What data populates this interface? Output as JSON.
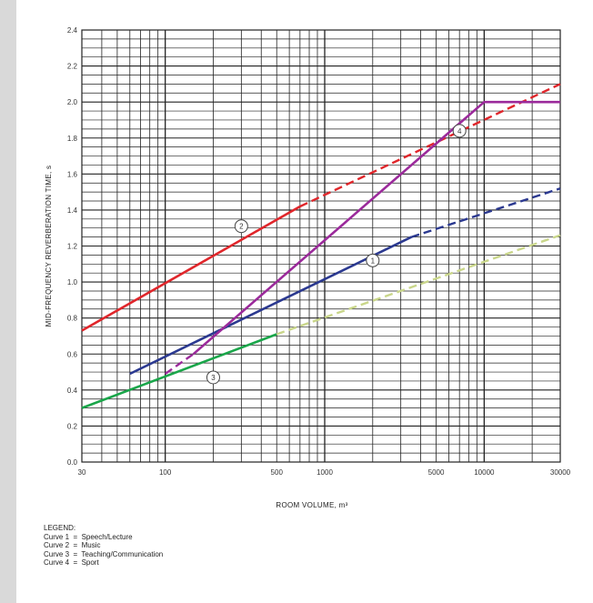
{
  "chart_data": {
    "type": "line",
    "x_scale": "log",
    "xlim": [
      30,
      30000
    ],
    "ylim": [
      0.0,
      2.4
    ],
    "grid": true,
    "x_ticks": [
      30,
      100,
      500,
      1000,
      5000,
      10000,
      30000
    ],
    "x_tick_labels": [
      "30",
      "100",
      "500",
      "1000",
      "5000",
      "10000",
      "30000"
    ],
    "y_ticks": [
      0.0,
      0.2,
      0.4,
      0.6,
      0.8,
      1.0,
      1.2,
      1.4,
      1.6,
      1.8,
      2.0,
      2.2,
      2.4
    ],
    "y_tick_labels": [
      "0.0",
      "0.2",
      "0.4",
      "0.6",
      "0.8",
      "1.0",
      "1.2",
      "1.4",
      "1.6",
      "1.8",
      "2.0",
      "2.2",
      "2.4"
    ],
    "xlabel": "ROOM VOLUME, m³",
    "ylabel": "MID-FREQUENCY REVERBERATION TIME, s",
    "series": [
      {
        "name": "Speech/Lecture",
        "number": "1",
        "color": "#2b3990",
        "solid": [
          [
            60,
            0.49
          ],
          [
            3500,
            1.25
          ]
        ],
        "dashed": [
          [
            3500,
            1.25
          ],
          [
            30000,
            1.52
          ]
        ],
        "marker_at": [
          2000,
          1.12
        ]
      },
      {
        "name": "Music",
        "number": "2",
        "color": "#e0262b",
        "solid": [
          [
            30,
            0.73
          ],
          [
            700,
            1.42
          ]
        ],
        "dashed": [
          [
            700,
            1.42
          ],
          [
            30000,
            2.1
          ]
        ],
        "marker_at": [
          300,
          1.31
        ]
      },
      {
        "name": "Teaching/Communication",
        "number": "3",
        "color": "#1aa64a",
        "solid": [
          [
            30,
            0.3
          ],
          [
            500,
            0.71
          ]
        ],
        "dashed": [
          [
            500,
            0.71
          ],
          [
            30000,
            1.26
          ]
        ],
        "dashed_color": "#c9d68a",
        "marker_at": [
          200,
          0.47
        ]
      },
      {
        "name": "Sport",
        "number": "4",
        "color": "#9b2a9b",
        "dashed": [
          [
            100,
            0.49
          ],
          [
            150,
            0.6
          ]
        ],
        "solid": [
          [
            150,
            0.6
          ],
          [
            10000,
            2.0
          ],
          [
            30000,
            2.0
          ]
        ],
        "marker_at": [
          7000,
          1.84
        ]
      }
    ]
  },
  "legend": {
    "title": "LEGEND:",
    "entries": [
      "Curve 1  =  Speech/Lecture",
      "Curve 2  =  Music",
      "Curve 3  =  Teaching/Communication",
      "Curve 4  =  Sport"
    ]
  },
  "colors": {
    "grid": "#222222",
    "background": "#ffffff",
    "frame": "#d9d9d9"
  }
}
